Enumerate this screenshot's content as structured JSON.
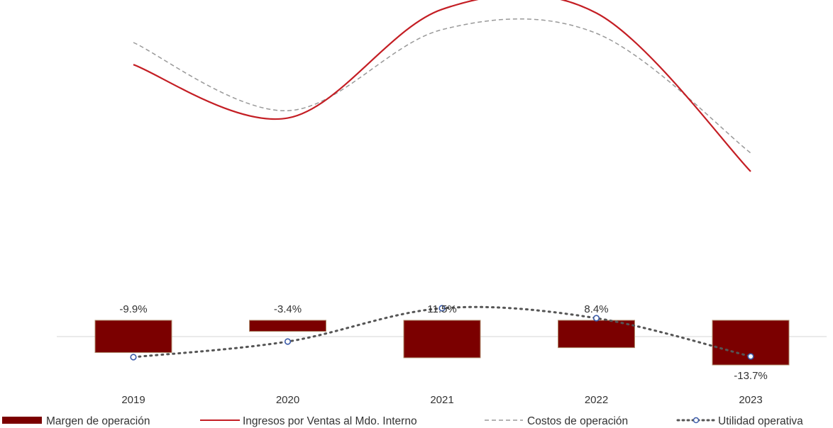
{
  "chart_data": {
    "type": "bar",
    "categories": [
      "2019",
      "2020",
      "2021",
      "2022",
      "2023"
    ],
    "series": [
      {
        "name": "Margen de operación",
        "type": "bar",
        "values": [
          -9.9,
          -3.4,
          11.5,
          8.4,
          -13.7
        ],
        "labels": [
          "-9.9%",
          "-3.4%",
          "11.5%",
          "8.4%",
          "-13.7%"
        ],
        "color": "#7b0000"
      },
      {
        "name": "Ingresos por Ventas al Mdo. Interno",
        "type": "line",
        "values": [
          0.68,
          0.39,
          0.98,
          0.96,
          0.1
        ],
        "color": "#c41e24"
      },
      {
        "name": "Costos de operación",
        "type": "line-dashed",
        "values": [
          0.8,
          0.43,
          0.87,
          0.85,
          0.2
        ],
        "color": "#999999"
      },
      {
        "name": "Utilidad operativa",
        "type": "line-dotted",
        "values": [
          -0.29,
          -0.07,
          0.4,
          0.26,
          -0.28
        ],
        "color": "#555555"
      }
    ],
    "legend_position": "bottom",
    "grid": false
  }
}
